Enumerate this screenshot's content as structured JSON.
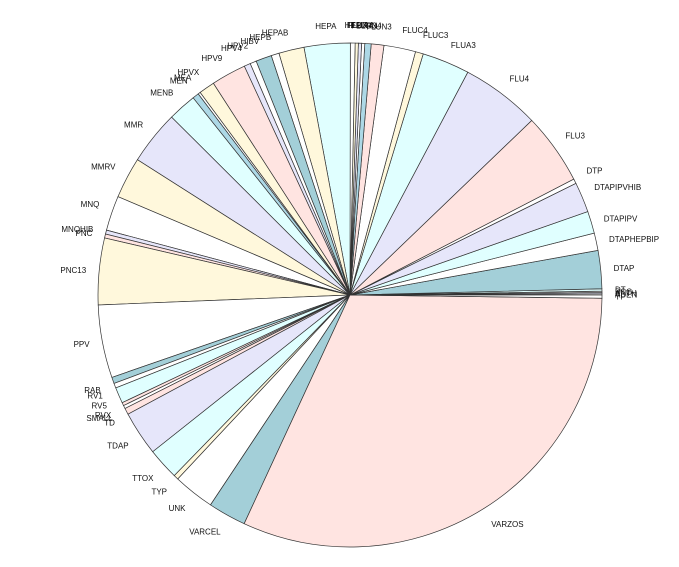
{
  "chart_data": {
    "type": "pie",
    "title": "",
    "direction": "counterclockwise",
    "start_angle_deg": 0,
    "legend": "none",
    "background_color": "#FFFFFF",
    "stroke_color": "#333333",
    "label_color": "#111111",
    "slices": [
      {
        "label": "ADEN",
        "value": 0.08,
        "color": "#FFFFFF"
      },
      {
        "label": "ANTH",
        "value": 0.08,
        "color": "#E6E6FA"
      },
      {
        "label": "BCG",
        "value": 0.08,
        "color": "#FFFFFF"
      },
      {
        "label": "DT",
        "value": 0.15,
        "color": "#E0FFFF"
      },
      {
        "label": "DTAP",
        "value": 2.4,
        "color": "#A3CFD8"
      },
      {
        "label": "DTAPHEPBIP",
        "value": 1.1,
        "color": "#FFFFFF"
      },
      {
        "label": "DTAPIPV",
        "value": 1.4,
        "color": "#E0FFFF"
      },
      {
        "label": "DTAPIPVHIB",
        "value": 1.9,
        "color": "#E6E6FA"
      },
      {
        "label": "DTP",
        "value": 0.3,
        "color": "#FFFFFF"
      },
      {
        "label": "FLU3",
        "value": 4.5,
        "color": "#FFE4E1"
      },
      {
        "label": "FLU4",
        "value": 5.0,
        "color": "#E6E6FA"
      },
      {
        "label": "FLUA3",
        "value": 3.0,
        "color": "#E0FFFF"
      },
      {
        "label": "FLUC3",
        "value": 0.5,
        "color": "#FFF8DC"
      },
      {
        "label": "FLUC4",
        "value": 2.0,
        "color": "#FFFFFF"
      },
      {
        "label": "FLUN3",
        "value": 0.8,
        "color": "#FFE4E1"
      },
      {
        "label": "FLUN4",
        "value": 0.4,
        "color": "#ADD8E6"
      },
      {
        "label": "FLUR3",
        "value": 0.2,
        "color": "#FFFFFF"
      },
      {
        "label": "FLUR4",
        "value": 0.2,
        "color": "#E6E6FA"
      },
      {
        "label": "FLUX",
        "value": 0.2,
        "color": "#FFF8DC"
      },
      {
        "label": "HEP",
        "value": 0.3,
        "color": "#FFFFFF"
      },
      {
        "label": "HEPA",
        "value": 2.9,
        "color": "#E0FFFF"
      },
      {
        "label": "HEPAB",
        "value": 1.6,
        "color": "#FFF8DC"
      },
      {
        "label": "HEPB",
        "value": 0.5,
        "color": "#FFFFFF"
      },
      {
        "label": "HIBV",
        "value": 1.0,
        "color": "#A3CFD8"
      },
      {
        "label": "HPV2",
        "value": 0.4,
        "color": "#FFFFFF"
      },
      {
        "label": "HPV4",
        "value": 0.4,
        "color": "#E6E6FA"
      },
      {
        "label": "HPV9",
        "value": 2.2,
        "color": "#FFE4E1"
      },
      {
        "label": "HPVX",
        "value": 1.0,
        "color": "#FFF8DC"
      },
      {
        "label": "MEA",
        "value": 0.15,
        "color": "#FFFFFF"
      },
      {
        "label": "MEN",
        "value": 0.4,
        "color": "#ADD8E6"
      },
      {
        "label": "MENB",
        "value": 1.8,
        "color": "#E0FFFF"
      },
      {
        "label": "MMR",
        "value": 3.4,
        "color": "#E6E6FA"
      },
      {
        "label": "MMRV",
        "value": 2.6,
        "color": "#FFF8DC"
      },
      {
        "label": "MNQ",
        "value": 2.2,
        "color": "#FFFFFF"
      },
      {
        "label": "MNQHIB",
        "value": 0.25,
        "color": "#E6E6FA"
      },
      {
        "label": "PNC",
        "value": 0.25,
        "color": "#FFE4E1"
      },
      {
        "label": "PNC13",
        "value": 4.2,
        "color": "#FFF8DC"
      },
      {
        "label": "PPV",
        "value": 4.6,
        "color": "#FFFFFF"
      },
      {
        "label": "RAB",
        "value": 0.4,
        "color": "#A3CFD8"
      },
      {
        "label": "RV1",
        "value": 0.3,
        "color": "#FFFFFF"
      },
      {
        "label": "RV5",
        "value": 1.0,
        "color": "#E0FFFF"
      },
      {
        "label": "RVX",
        "value": 0.2,
        "color": "#FFE4E1"
      },
      {
        "label": "SMALL",
        "value": 0.2,
        "color": "#FFFFFF"
      },
      {
        "label": "TD",
        "value": 0.4,
        "color": "#FFE4E1"
      },
      {
        "label": "TDAP",
        "value": 2.8,
        "color": "#E6E6FA"
      },
      {
        "label": "TTOX",
        "value": 2.0,
        "color": "#E0FFFF"
      },
      {
        "label": "TYP",
        "value": 0.3,
        "color": "#FFF8DC"
      },
      {
        "label": "UNK",
        "value": 2.6,
        "color": "#FFFFFF"
      },
      {
        "label": "VARCEL",
        "value": 2.4,
        "color": "#A3CFD8"
      },
      {
        "label": "VARZOS",
        "value": 31.2,
        "color": "#FFE4E1"
      },
      {
        "label": "YF",
        "value": 0.2,
        "color": "#FFFFFF"
      }
    ]
  }
}
